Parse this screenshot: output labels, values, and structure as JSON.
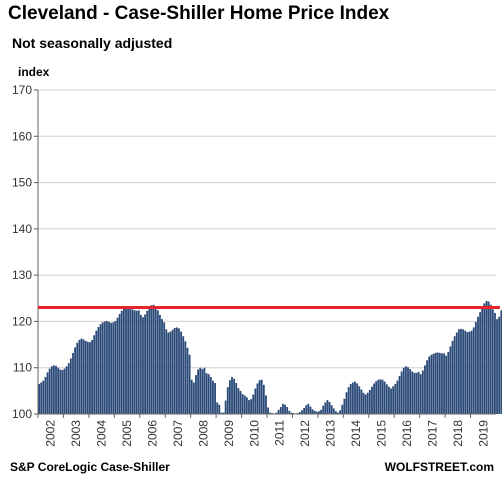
{
  "title": "Cleveland - Case-Shiller Home Price Index",
  "subtitle": "Not seasonally adjusted",
  "source": "S&P CoreLogic Case-Shiller",
  "brand": "WOLFSTREET.com",
  "colors": {
    "bar": "#2b4a78",
    "reference_line": "#e8232a",
    "grid": "#d0d0d0"
  },
  "chart_data": {
    "type": "bar",
    "title": "Cleveland - Case-Shiller Home Price Index",
    "subtitle": "Not seasonally adjusted",
    "ylabel": "index",
    "xlabel": "",
    "ylim": [
      100,
      170
    ],
    "yticks": [
      100,
      110,
      120,
      130,
      140,
      150,
      160,
      170
    ],
    "xticks": [
      "2002",
      "2003",
      "2004",
      "2005",
      "2006",
      "2007",
      "2008",
      "2009",
      "2010",
      "2011",
      "2012",
      "2013",
      "2014",
      "2015",
      "2016",
      "2017",
      "2018",
      "2019"
    ],
    "grid": "horizontal",
    "reference_line": {
      "y": 123
    },
    "start": "2002-01",
    "frequency": "monthly",
    "values": [
      106.5,
      106.8,
      107.2,
      108.0,
      109.0,
      109.8,
      110.3,
      110.5,
      110.4,
      110.0,
      109.6,
      109.5,
      109.8,
      110.3,
      111.0,
      112.0,
      113.2,
      114.4,
      115.4,
      116.0,
      116.3,
      116.1,
      115.8,
      115.6,
      115.5,
      116.0,
      117.0,
      118.0,
      118.8,
      119.4,
      119.8,
      120.0,
      120.1,
      119.9,
      119.7,
      119.8,
      120.1,
      120.8,
      121.6,
      122.3,
      122.8,
      123.1,
      123.1,
      122.9,
      122.6,
      122.4,
      122.3,
      122.4,
      121.4,
      120.9,
      121.5,
      122.3,
      123.1,
      123.5,
      123.6,
      123.2,
      122.4,
      121.4,
      120.5,
      119.8,
      118.3,
      117.6,
      117.8,
      118.2,
      118.6,
      118.7,
      118.5,
      117.8,
      116.8,
      115.7,
      114.3,
      112.8,
      107.4,
      106.8,
      108.4,
      109.6,
      110.0,
      109.7,
      110.0,
      108.8,
      108.6,
      108.0,
      107.2,
      106.7,
      102.5,
      102.0,
      100.3,
      100.3,
      102.9,
      105.8,
      107.3,
      108.0,
      107.6,
      106.7,
      105.6,
      105.0,
      104.3,
      104.0,
      103.6,
      103.0,
      103.2,
      104.2,
      105.5,
      106.6,
      107.3,
      107.4,
      106.3,
      104.0,
      101.4,
      100.3,
      100.2,
      100.1,
      100.3,
      100.9,
      101.5,
      102.2,
      102.0,
      101.5,
      100.7,
      100.3,
      100.2,
      100.1,
      100.2,
      100.4,
      100.8,
      101.3,
      101.9,
      102.2,
      101.6,
      101.0,
      100.7,
      100.5,
      100.6,
      100.9,
      101.8,
      102.5,
      103.0,
      102.6,
      101.9,
      101.2,
      100.6,
      100.3,
      100.8,
      102.0,
      103.3,
      104.7,
      105.8,
      106.5,
      106.8,
      107.0,
      106.6,
      106.0,
      105.3,
      104.6,
      104.2,
      104.6,
      105.2,
      105.9,
      106.6,
      107.1,
      107.4,
      107.5,
      107.4,
      107.0,
      106.4,
      105.9,
      105.5,
      106.0,
      106.5,
      107.2,
      108.2,
      109.2,
      110.0,
      110.3,
      110.1,
      109.7,
      109.2,
      108.9,
      108.9,
      109.1,
      108.6,
      109.4,
      110.5,
      111.6,
      112.4,
      112.8,
      113.0,
      113.2,
      113.3,
      113.2,
      113.1,
      113.1,
      112.6,
      113.4,
      114.6,
      115.8,
      116.8,
      117.6,
      118.3,
      118.4,
      118.3,
      118.0,
      117.7,
      117.8,
      118.0,
      118.7,
      119.9,
      121.0,
      122.0,
      123.0,
      123.9,
      124.4,
      124.3,
      123.6,
      122.6,
      121.8,
      120.5,
      121.0,
      122.4,
      123.2
    ]
  }
}
